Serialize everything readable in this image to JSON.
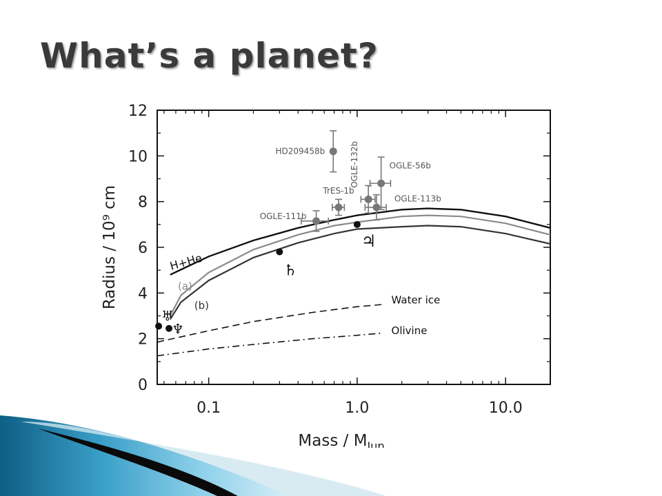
{
  "slide": {
    "title": "What’s a planet?"
  },
  "colors": {
    "title": "#3a3a3a",
    "planets": "#111111",
    "exoplanets": "#777777",
    "curve_hhe": "#111111",
    "curve_a": "#8a8a8a",
    "curve_b": "#333333",
    "accent_dark": "#0b4d6b",
    "accent_light": "#6ec3e3"
  },
  "chart_data": {
    "type": "scatter",
    "xlabel": "Mass / M",
    "xlabel_sub": "Jup",
    "ylabel": "Radius / 10⁹ cm",
    "xscale": "log",
    "xlim": [
      0.045,
      20
    ],
    "ylim": [
      0,
      12
    ],
    "xticks": [
      0.1,
      1.0,
      10.0
    ],
    "xtick_labels": [
      "0.1",
      "1.0",
      "10.0"
    ],
    "yticks": [
      0,
      2,
      4,
      6,
      8,
      10,
      12
    ],
    "ytick_labels": [
      "0",
      "2",
      "4",
      "6",
      "8",
      "10",
      "12"
    ],
    "grid": false,
    "curves": [
      {
        "label": "H+He",
        "style": "solid",
        "color": "#111111",
        "x": [
          0.055,
          0.1,
          0.2,
          0.4,
          0.7,
          1.0,
          2.0,
          3.0,
          5.0,
          10.0,
          20.0
        ],
        "y": [
          4.8,
          5.6,
          6.3,
          6.85,
          7.2,
          7.4,
          7.65,
          7.7,
          7.65,
          7.35,
          6.85
        ]
      },
      {
        "label": "(a)",
        "style": "solid",
        "color": "#8a8a8a",
        "x": [
          0.055,
          0.065,
          0.1,
          0.2,
          0.4,
          0.7,
          1.0,
          2.0,
          3.0,
          5.0,
          10.0,
          20.0
        ],
        "y": [
          3.0,
          3.9,
          4.9,
          5.9,
          6.55,
          6.95,
          7.1,
          7.35,
          7.4,
          7.35,
          7.05,
          6.55
        ]
      },
      {
        "label": "(b)",
        "style": "solid",
        "color": "#333333",
        "x": [
          0.055,
          0.065,
          0.1,
          0.2,
          0.4,
          0.7,
          1.0,
          2.0,
          3.0,
          5.0,
          10.0,
          20.0
        ],
        "y": [
          2.85,
          3.6,
          4.55,
          5.55,
          6.2,
          6.6,
          6.8,
          6.9,
          6.95,
          6.9,
          6.6,
          6.15
        ]
      },
      {
        "label": "Water ice",
        "style": "dashed",
        "color": "#111111",
        "x": [
          0.045,
          0.1,
          0.2,
          0.5,
          1.0,
          1.5
        ],
        "y": [
          1.85,
          2.35,
          2.75,
          3.15,
          3.4,
          3.5
        ]
      },
      {
        "label": "Olivine",
        "style": "dashdot",
        "color": "#111111",
        "x": [
          0.045,
          0.1,
          0.2,
          0.5,
          1.0,
          1.5
        ],
        "y": [
          1.25,
          1.55,
          1.75,
          2.0,
          2.15,
          2.25
        ]
      }
    ],
    "solar_planets": [
      {
        "symbol": "♃",
        "x": 1.0,
        "y": 7.0
      },
      {
        "symbol": "♄",
        "x": 0.3,
        "y": 5.8
      },
      {
        "symbol": "♅",
        "x": 0.046,
        "y": 2.55
      },
      {
        "symbol": "♆",
        "x": 0.054,
        "y": 2.45
      }
    ],
    "exoplanets": [
      {
        "name": "HD209458b",
        "x": 0.69,
        "y": 10.2,
        "xerr": 0.0,
        "yerr": 0.9
      },
      {
        "name": "TrES-1b",
        "x": 0.75,
        "y": 7.75,
        "xerr": 0.07,
        "yerr": 0.35
      },
      {
        "name": "OGLE-111b",
        "x": 0.53,
        "y": 7.15,
        "xerr": 0.11,
        "yerr": 0.45
      },
      {
        "name": "OGLE-132b",
        "x": 1.19,
        "y": 8.1,
        "xerr": 0.13,
        "yerr": 0.6
      },
      {
        "name": "OGLE-56b",
        "x": 1.45,
        "y": 8.8,
        "xerr": 0.23,
        "yerr": 1.15
      },
      {
        "name": "OGLE-113b",
        "x": 1.35,
        "y": 7.75,
        "xerr": 0.22,
        "yerr": 0.55
      }
    ]
  }
}
